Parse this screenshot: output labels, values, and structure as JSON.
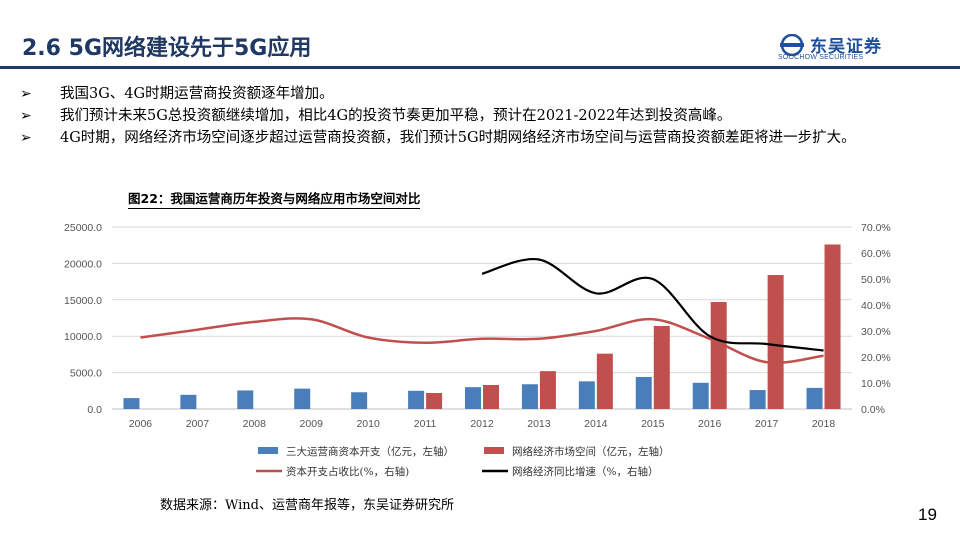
{
  "header": {
    "title": "2.6 5G网络建设先于5G应用",
    "logo_cn": "东吴证券",
    "logo_en": "SOOCHOW SECURITIES"
  },
  "bullets": [
    "我国3G、4G时期运营商投资额逐年增加。",
    "我们预计未来5G总投资额继续增加，相比4G的投资节奏更加平稳，预计在2021-2022年达到投资高峰。",
    "4G时期，网络经济市场空间逐步超过运营商投资额，我们预计5G时期网络经济市场空间与运营商投资额差距将进一步扩大。"
  ],
  "bullet_marker": "➢",
  "figure_title": "图22：我国运营商历年投资与网络应用市场空间对比",
  "source": "数据来源：Wind、运营商年报等，东吴证券研究所",
  "page_number": "19",
  "chart_data": {
    "type": "bar",
    "categories": [
      "2006",
      "2007",
      "2008",
      "2009",
      "2010",
      "2011",
      "2012",
      "2013",
      "2014",
      "2015",
      "2016",
      "2017",
      "2018"
    ],
    "y_left": {
      "ylim": [
        0,
        25000
      ],
      "ticks": [
        "0.0",
        "5000.0",
        "10000.0",
        "15000.0",
        "20000.0",
        "25000.0"
      ]
    },
    "y_right": {
      "ylim": [
        0,
        70
      ],
      "ticks": [
        "0.0%",
        "10.0%",
        "20.0%",
        "30.0%",
        "40.0%",
        "50.0%",
        "60.0%",
        "70.0%"
      ]
    },
    "grid": true,
    "legend_position": "bottom",
    "series": [
      {
        "name": "三大运营商资本开支（亿元，左轴）",
        "kind": "bar",
        "axis": "left",
        "color": "#4a7ebb",
        "values": [
          1500,
          1950,
          2550,
          2800,
          2300,
          2500,
          3000,
          3400,
          3800,
          4400,
          3600,
          2600,
          2900
        ]
      },
      {
        "name": "网络经济市场空间（亿元，左轴）",
        "kind": "bar",
        "axis": "left",
        "color": "#c0504d",
        "values": [
          null,
          null,
          null,
          null,
          null,
          2200,
          3300,
          5200,
          7600,
          11400,
          14700,
          18400,
          22600
        ]
      },
      {
        "name": "资本开支占收比(%，右轴)",
        "kind": "line",
        "axis": "right",
        "color": "#c0504d",
        "values": [
          27.5,
          30.5,
          33.5,
          34.5,
          27.5,
          25.5,
          27.0,
          27.0,
          30.0,
          34.5,
          27.0,
          18.0,
          20.5
        ]
      },
      {
        "name": "网络经济同比增速（%，右轴）",
        "kind": "line",
        "axis": "right",
        "color": "#000000",
        "values": [
          null,
          null,
          null,
          null,
          null,
          null,
          52.0,
          57.5,
          44.5,
          50.0,
          28.0,
          25.0,
          22.5
        ]
      }
    ]
  }
}
